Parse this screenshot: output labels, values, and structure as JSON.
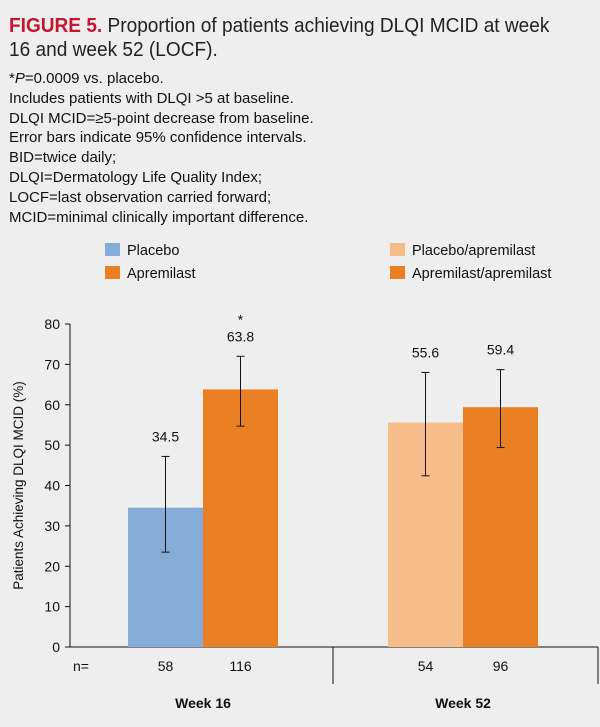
{
  "header": {
    "figure_label": "FIGURE 5.",
    "title_text": " Proportion of patients achieving DLQI MCID at week 16 and week 52 (LOCF)."
  },
  "notes": {
    "significance_symbol": "*",
    "significance_p": "P",
    "significance_rest": "=0.0009 vs. placebo.",
    "lines": [
      "Includes patients with DLQI >5 at baseline.",
      "DLQI MCID=≥5-point decrease from baseline.",
      "Error bars indicate 95% confidence intervals.",
      "BID=twice daily;",
      "DLQI=Dermatology Life Quality Index;",
      "LOCF=last observation carried forward;",
      "MCID=minimal clinically important difference."
    ]
  },
  "colors": {
    "placebo": "#85abd7",
    "apremilast": "#ea7f24",
    "placebo_apremilast": "#f6bd8b",
    "apremilast_apremilast": "#ea7f24",
    "axis": "#111111",
    "background": "#eeeeef"
  },
  "chart_data": {
    "type": "bar",
    "title": "Proportion of patients achieving DLQI MCID at week 16 and week 52 (LOCF).",
    "ylabel": "Patients Achieving DLQI MCID (%)",
    "xlabel": "",
    "ylim": [
      0,
      80
    ],
    "yticks": [
      0,
      10,
      20,
      30,
      40,
      50,
      60,
      70,
      80
    ],
    "grid": false,
    "legend_position": "top",
    "n_label": "n=",
    "legend": [
      {
        "name": "Placebo",
        "color_key": "placebo"
      },
      {
        "name": "Apremilast",
        "color_key": "apremilast"
      },
      {
        "name": "Placebo/apremilast",
        "color_key": "placebo_apremilast"
      },
      {
        "name": "Apremilast/apremilast",
        "color_key": "apremilast_apremilast"
      }
    ],
    "groups": [
      {
        "label": "Week 16",
        "bars": [
          {
            "series": "Placebo",
            "color_key": "placebo",
            "value": 34.5,
            "label": "34.5",
            "ci": [
              23.5,
              47.2
            ],
            "n": "58",
            "annotation": ""
          },
          {
            "series": "Apremilast",
            "color_key": "apremilast",
            "value": 63.8,
            "label": "63.8",
            "ci": [
              54.7,
              72.0
            ],
            "n": "116",
            "annotation": "*"
          }
        ]
      },
      {
        "label": "Week 52",
        "bars": [
          {
            "series": "Placebo/apremilast",
            "color_key": "placebo_apremilast",
            "value": 55.6,
            "label": "55.6",
            "ci": [
              42.4,
              68.0
            ],
            "n": "54",
            "annotation": ""
          },
          {
            "series": "Apremilast/apremilast",
            "color_key": "apremilast_apremilast",
            "value": 59.4,
            "label": "59.4",
            "ci": [
              49.4,
              68.7
            ],
            "n": "96",
            "annotation": ""
          }
        ]
      }
    ]
  }
}
